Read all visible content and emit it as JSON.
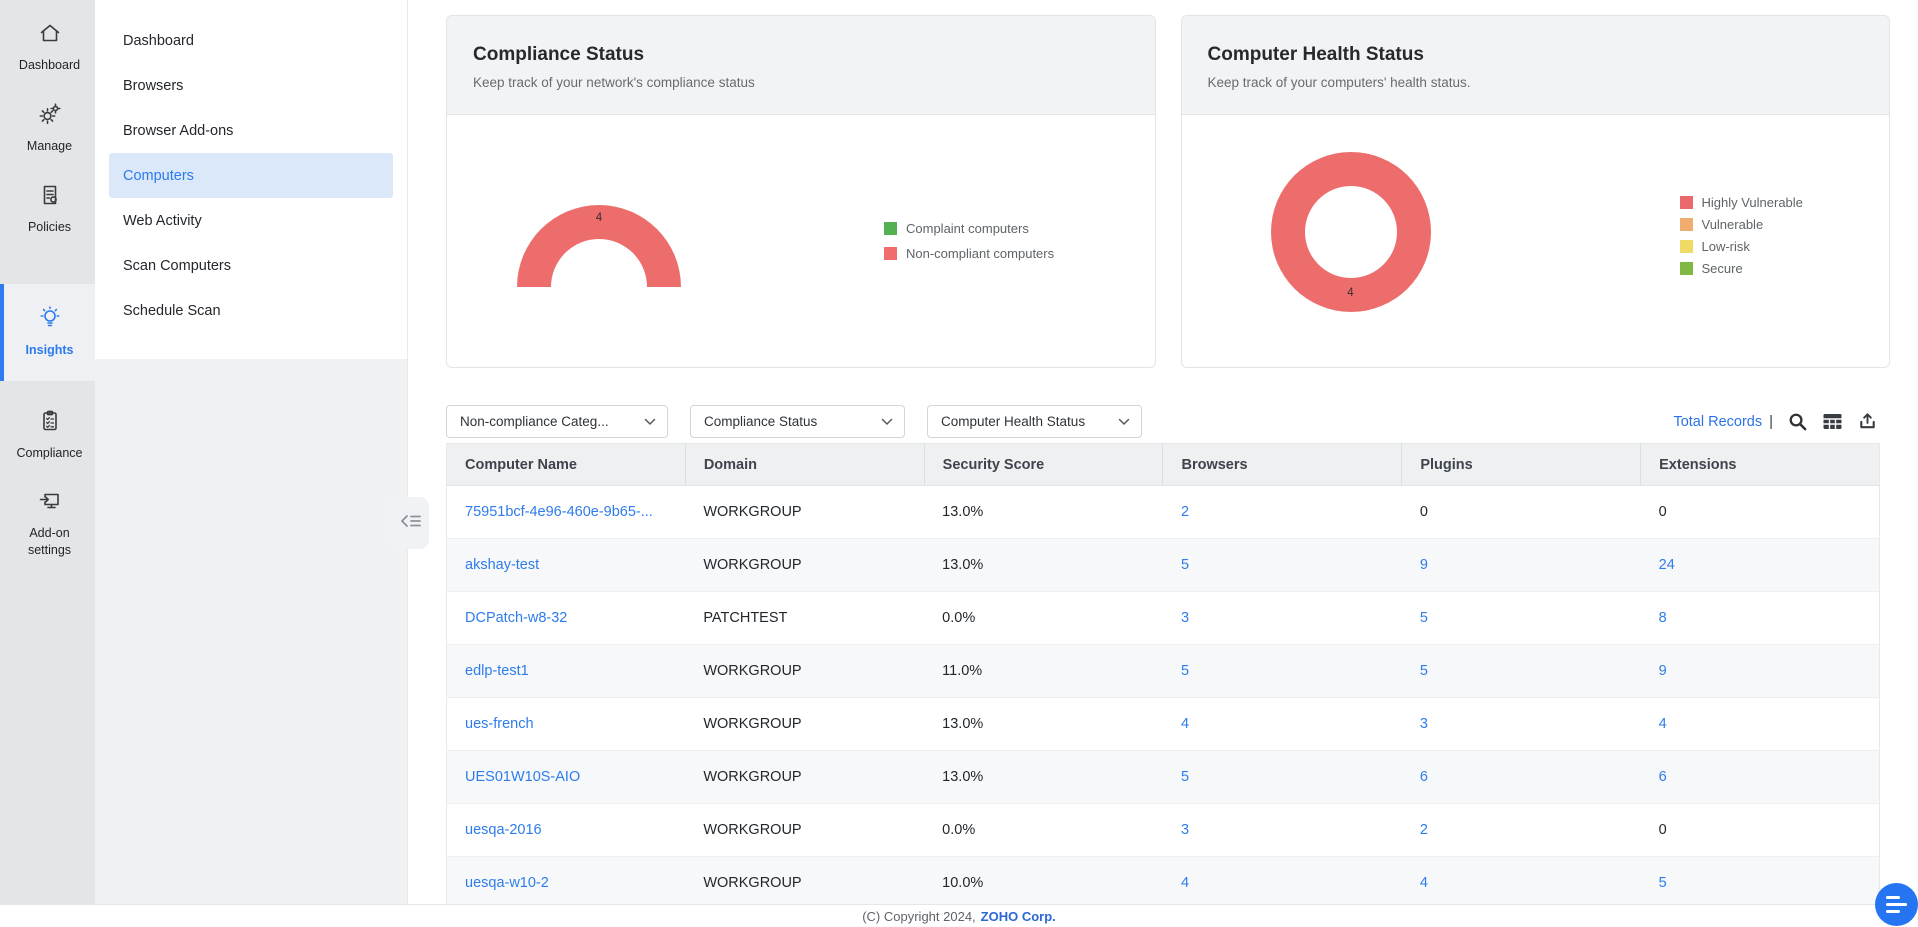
{
  "rail": {
    "items": [
      {
        "id": "dashboard",
        "label": "Dashboard",
        "icon": "home-icon",
        "active": false
      },
      {
        "id": "manage",
        "label": "Manage",
        "icon": "gears-icon",
        "active": false
      },
      {
        "id": "policies",
        "label": "Policies",
        "icon": "policy-document-icon",
        "active": false
      },
      {
        "id": "insights",
        "label": "Insights",
        "icon": "lightbulb-icon",
        "active": true
      },
      {
        "id": "compliance",
        "label": "Compliance",
        "icon": "clipboard-icon",
        "active": false
      },
      {
        "id": "addon-settings",
        "label": "Add-on settings",
        "icon": "addon-monitor-icon",
        "active": false
      }
    ]
  },
  "sidebar": {
    "items": [
      {
        "id": "dashboard",
        "label": "Dashboard",
        "selected": false
      },
      {
        "id": "browsers",
        "label": "Browsers",
        "selected": false
      },
      {
        "id": "browser-add-ons",
        "label": "Browser Add-ons",
        "selected": false
      },
      {
        "id": "computers",
        "label": "Computers",
        "selected": true
      },
      {
        "id": "web-activity",
        "label": "Web Activity",
        "selected": false
      },
      {
        "id": "scan-computers",
        "label": "Scan Computers",
        "selected": false
      },
      {
        "id": "schedule-scan",
        "label": "Schedule Scan",
        "selected": false
      }
    ]
  },
  "cards": {
    "compliance": {
      "title": "Compliance Status",
      "subtitle": "Keep track of your network's compliance status",
      "chart": {
        "type": "gauge-semicircle",
        "value_label": "4",
        "value": 4,
        "color": "#ed6d6d",
        "legend": [
          {
            "label": "Complaint computers",
            "color": "#55b052"
          },
          {
            "label": "Non-compliant computers",
            "color": "#f16c6c"
          }
        ]
      }
    },
    "health": {
      "title": "Computer Health Status",
      "subtitle": "Keep track of your computers' health status.",
      "chart": {
        "type": "donut",
        "value_label": "4",
        "value": 4,
        "color": "#ed6d6d",
        "legend": [
          {
            "label": "Highly Vulnerable",
            "color": "#ea696a"
          },
          {
            "label": "Vulnerable",
            "color": "#efae6e"
          },
          {
            "label": "Low-risk",
            "color": "#efdb64"
          },
          {
            "label": "Secure",
            "color": "#7fb843"
          }
        ]
      }
    }
  },
  "filters": [
    {
      "id": "non-compliance-category",
      "label": "Non-compliance Categ..."
    },
    {
      "id": "compliance-status",
      "label": "Compliance Status"
    },
    {
      "id": "computer-health-status",
      "label": "Computer Health Status"
    }
  ],
  "toolbar": {
    "total_records_label": "Total Records",
    "separator": "|",
    "icons": [
      "search-icon",
      "table-grid-icon",
      "export-icon"
    ]
  },
  "table": {
    "columns": [
      "Computer Name",
      "Domain",
      "Security Score",
      "Browsers",
      "Plugins",
      "Extensions"
    ],
    "rows": [
      {
        "name": "75951bcf-4e96-460e-9b65-...",
        "domain": "WORKGROUP",
        "score": "13.0%",
        "browsers": "2",
        "plugins": "0",
        "extensions": "0"
      },
      {
        "name": "akshay-test",
        "domain": "WORKGROUP",
        "score": "13.0%",
        "browsers": "5",
        "plugins": "9",
        "extensions": "24"
      },
      {
        "name": "DCPatch-w8-32",
        "domain": "PATCHTEST",
        "score": "0.0%",
        "browsers": "3",
        "plugins": "5",
        "extensions": "8"
      },
      {
        "name": "edlp-test1",
        "domain": "WORKGROUP",
        "score": "11.0%",
        "browsers": "5",
        "plugins": "5",
        "extensions": "9"
      },
      {
        "name": "ues-french",
        "domain": "WORKGROUP",
        "score": "13.0%",
        "browsers": "4",
        "plugins": "3",
        "extensions": "4"
      },
      {
        "name": "UES01W10S-AIO",
        "domain": "WORKGROUP",
        "score": "13.0%",
        "browsers": "5",
        "plugins": "6",
        "extensions": "6"
      },
      {
        "name": "uesqa-2016",
        "domain": "WORKGROUP",
        "score": "0.0%",
        "browsers": "3",
        "plugins": "2",
        "extensions": "0"
      },
      {
        "name": "uesqa-w10-2",
        "domain": "WORKGROUP",
        "score": "10.0%",
        "browsers": "4",
        "plugins": "4",
        "extensions": "5"
      }
    ]
  },
  "footer": {
    "copyright": "(C) Copyright 2024,",
    "company": "ZOHO Corp."
  },
  "colors": {
    "accent": "#2b7af0",
    "link": "#2e7ceb",
    "chart_red": "#ed6d6d"
  }
}
